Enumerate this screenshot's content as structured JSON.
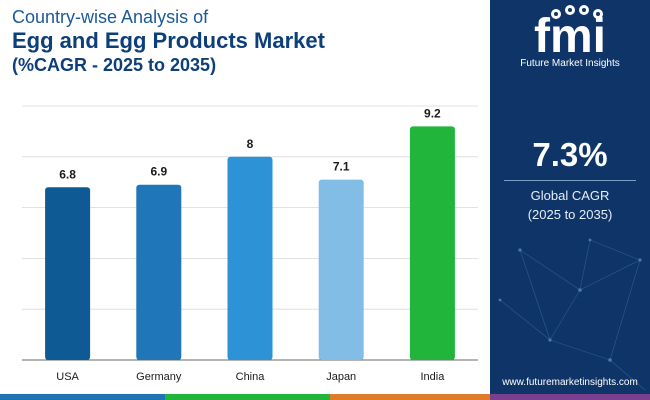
{
  "title": {
    "line1": "Country-wise Analysis of",
    "line2": "Egg and Egg Products Market",
    "line3": "(%CAGR - 2025 to 2035)"
  },
  "chart_data": {
    "type": "bar",
    "categories": [
      "USA",
      "Germany",
      "China",
      "Japan",
      "India"
    ],
    "values": [
      6.8,
      6.9,
      8,
      7.1,
      9.2
    ],
    "value_labels": [
      "6.8",
      "6.9",
      "8",
      "7.1",
      "9.2"
    ],
    "colors": [
      "#0d5a94",
      "#1f76b8",
      "#2e92d7",
      "#82bde5",
      "#22b53c"
    ],
    "ylim": [
      0,
      10
    ],
    "grid": true,
    "title": "",
    "xlabel": "",
    "ylabel": ""
  },
  "sidebar": {
    "brand_sub": "Future Market Insights",
    "kpi_value": "7.3%",
    "kpi_label_line1": "Global CAGR",
    "kpi_label_line2": "(2025 to 2035)",
    "website": "www.futuremarketinsights.com"
  },
  "colors": {
    "sidebar_bg": "#0f3568",
    "title_dark": "#0d3f7a",
    "title_light": "#1b5a9a",
    "bar_segments": [
      "#1f74b5",
      "#22b53c",
      "#e07b2a",
      "#7a3f8f"
    ]
  }
}
